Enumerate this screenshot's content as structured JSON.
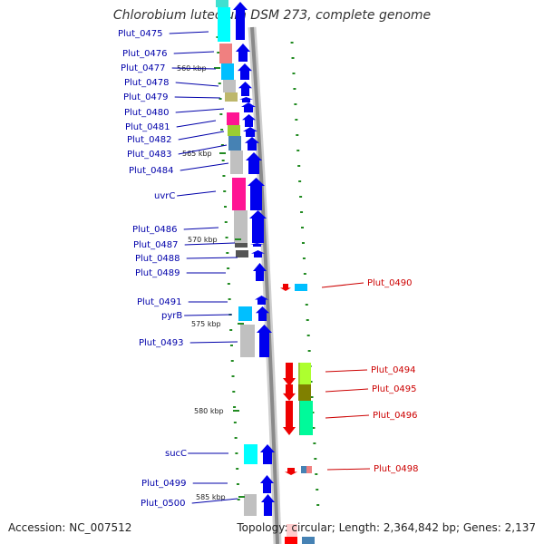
{
  "title": "Chlorobium luteolum DSM 273, complete genome",
  "footer": {
    "accession": "Accession: NC_007512",
    "topology": "Topology: circular; Length: 2,364,842 bp; Genes: 2,137"
  },
  "colors": {
    "forward_arrow": "#0000ee",
    "reverse_arrow": "#ee0000",
    "backbone": "#888888",
    "ticks": "#228b22",
    "left_label": "#0000aa",
    "right_label": "#cc0000"
  },
  "scale_labels": [
    "560 kbp",
    "565 kbp",
    "570 kbp",
    "575 kbp",
    "580 kbp",
    "585 kbp"
  ],
  "left_genes": [
    "Plut_0475",
    "Plut_0476",
    "Plut_0477",
    "Plut_0478",
    "Plut_0479",
    "Plut_0480",
    "Plut_0481",
    "Plut_0482",
    "Plut_0483",
    "Plut_0484",
    "uvrC",
    "Plut_0486",
    "Plut_0487",
    "Plut_0488",
    "Plut_0489",
    "Plut_0491",
    "pyrB",
    "Plut_0493",
    "sucC",
    "Plut_0499",
    "Plut_0500"
  ],
  "right_genes": [
    "Plut_0490",
    "Plut_0494",
    "Plut_0495",
    "Plut_0496",
    "Plut_0498"
  ]
}
